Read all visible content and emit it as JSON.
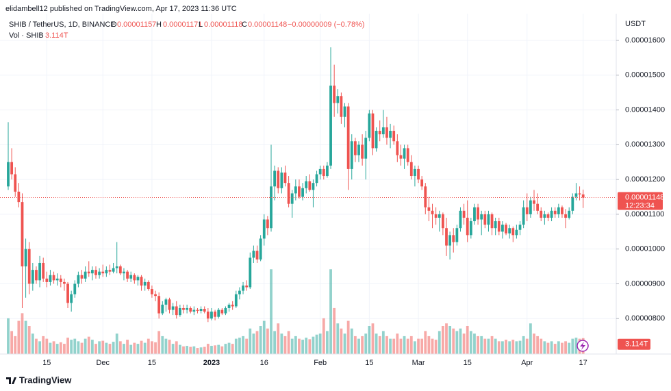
{
  "header": {
    "published": "elidambell12 published on TradingView.com, Apr 17, 2023 11:36 UTC"
  },
  "chart_data": {
    "type": "candlestick",
    "title": "SHIB / TetherUS, 1D, BINANCE",
    "ohlc_keys": [
      "O",
      "H",
      "L",
      "C"
    ],
    "change": "−0.00000009 (−0.78%)",
    "y_axis_label": "USDT",
    "countdown": "12:23:34",
    "grid": true,
    "up_color": "#26a69a",
    "down_color": "#ef5350",
    "ylim": [
      6.98e-06,
      1.667e-05
    ],
    "yticks": [
      {
        "value": 8e-06,
        "label": "0.00000800"
      },
      {
        "value": 9e-06,
        "label": "0.00000900"
      },
      {
        "value": 1e-05,
        "label": "0.00001000"
      },
      {
        "value": 1.1e-05,
        "label": "0.00001100"
      },
      {
        "value": 1.2e-05,
        "label": "0.00001200"
      },
      {
        "value": 1.3e-05,
        "label": "0.00001300"
      },
      {
        "value": 1.4e-05,
        "label": "0.00001400"
      },
      {
        "value": 1.5e-05,
        "label": "0.00001500"
      },
      {
        "value": 1.6e-05,
        "label": "0.00001600"
      }
    ],
    "categories": [
      null,
      null,
      null,
      null,
      null,
      null,
      null,
      null,
      null,
      null,
      null,
      "15",
      null,
      null,
      null,
      null,
      null,
      null,
      null,
      null,
      null,
      null,
      null,
      null,
      null,
      null,
      null,
      "Dec",
      null,
      null,
      null,
      null,
      null,
      null,
      null,
      null,
      null,
      null,
      null,
      null,
      null,
      "15",
      null,
      null,
      null,
      null,
      null,
      null,
      null,
      null,
      null,
      null,
      null,
      null,
      null,
      null,
      null,
      null,
      "2023",
      null,
      null,
      null,
      null,
      null,
      null,
      null,
      null,
      null,
      null,
      null,
      null,
      null,
      null,
      "16",
      null,
      null,
      null,
      null,
      null,
      null,
      null,
      null,
      null,
      null,
      null,
      null,
      null,
      null,
      null,
      "Feb",
      null,
      null,
      null,
      null,
      null,
      null,
      null,
      null,
      null,
      null,
      null,
      null,
      null,
      "15",
      null,
      null,
      null,
      null,
      null,
      null,
      null,
      null,
      null,
      null,
      null,
      null,
      null,
      "Mar",
      null,
      null,
      null,
      null,
      null,
      null,
      null,
      null,
      null,
      null,
      null,
      null,
      null,
      "15",
      null,
      null,
      null,
      null,
      null,
      null,
      null,
      null,
      null,
      null,
      null,
      null,
      null,
      null,
      null,
      null,
      "Apr",
      null,
      null,
      null,
      null,
      null,
      null,
      null,
      null,
      null,
      null,
      null,
      null,
      null,
      null,
      null,
      "17"
    ],
    "open": [
      1.18e-05,
      1.25e-05,
      1.215e-05,
      1.165e-05,
      1.135e-05,
      9.5e-06,
      1e-05,
      9e-06,
      9.4e-06,
      9.1e-06,
      9.6e-06,
      9.15e-06,
      9.05e-06,
      9.25e-06,
      9.1e-06,
      9.15e-06,
      9.05e-06,
      9e-06,
      8.45e-06,
      8.7e-06,
      9e-06,
      9.25e-06,
      9.15e-06,
      9.35e-06,
      9.3e-06,
      9.4e-06,
      9.25e-06,
      9.35e-06,
      9.3e-06,
      9.4e-06,
      9.35e-06,
      9.45e-06,
      9.5e-06,
      9.3e-06,
      9.35e-06,
      9.15e-06,
      9.25e-06,
      9.1e-06,
      9.2e-06,
      8.95e-06,
      9.05e-06,
      8.85e-06,
      8.7e-06,
      8.65e-06,
      8.15e-06,
      8.4e-06,
      8.55e-06,
      8.25e-06,
      8.35e-06,
      8.1e-06,
      8.3e-06,
      8.25e-06,
      8.3e-06,
      8.2e-06,
      8.25e-06,
      8.22e-06,
      8.28e-06,
      8.2e-06,
      8e-06,
      8.2e-06,
      8.05e-06,
      8.25e-06,
      8.15e-06,
      8.3e-06,
      8.4e-06,
      8.35e-06,
      8.7e-06,
      8.8e-06,
      8.95e-06,
      8.9e-06,
      9.75e-06,
      9.95e-06,
      9.7e-06,
      1.03e-05,
      1.085e-05,
      1.06e-05,
      1.18e-05,
      1.225e-05,
      1.175e-05,
      1.22e-05,
      1.19e-05,
      1.13e-05,
      1.16e-05,
      1.18e-05,
      1.15e-05,
      1.175e-05,
      1.195e-05,
      1.17e-05,
      1.19e-05,
      1.215e-05,
      1.23e-05,
      1.21e-05,
      1.24e-05,
      1.47e-05,
      1.42e-05,
      1.44e-05,
      1.38e-05,
      1.41e-05,
      1.23e-05,
      1.31e-05,
      1.27e-05,
      1.3e-05,
      1.26e-05,
      1.32e-05,
      1.39e-05,
      1.29e-05,
      1.34e-05,
      1.33e-05,
      1.35e-05,
      1.32e-05,
      1.34e-05,
      1.31e-05,
      1.27e-05,
      1.26e-05,
      1.29e-05,
      1.25e-05,
      1.21e-05,
      1.23e-05,
      1.2e-05,
      1.18e-05,
      1.12e-05,
      1.11e-05,
      1.1e-05,
      1.09e-05,
      1.1e-05,
      1.06e-05,
      1.01e-05,
      1.04e-05,
      1.02e-05,
      1.06e-05,
      1.11e-05,
      1.09e-05,
      1.04e-05,
      1.08e-05,
      1.12e-05,
      1.085e-05,
      1.1e-05,
      1.07e-05,
      1.1e-05,
      1.06e-05,
      1.08e-05,
      1.05e-05,
      1.07e-05,
      1.045e-05,
      1.06e-05,
      1.04e-05,
      1.055e-05,
      1.07e-05,
      1.12e-05,
      1.1e-05,
      1.14e-05,
      1.13e-05,
      1.11e-05,
      1.09e-05,
      1.1e-05,
      1.09e-05,
      1.11e-05,
      1.1e-05,
      1.12e-05,
      1.1e-05,
      1.09e-05,
      1.11e-05,
      1.15e-05,
      1.16e-05,
      1.157e-05
    ],
    "high": [
      1.365e-05,
      1.29e-05,
      1.235e-05,
      1.19e-05,
      1.16e-05,
      1.03e-05,
      1.02e-05,
      9.6e-06,
      9.5e-06,
      9.8e-06,
      9.75e-06,
      9.35e-06,
      9.4e-06,
      9.35e-06,
      9.3e-06,
      9.25e-06,
      9.15e-06,
      9.05e-06,
      8.8e-06,
      9.1e-06,
      9.35e-06,
      9.4e-06,
      9.5e-06,
      9.65e-06,
      9.5e-06,
      9.5e-06,
      9.45e-06,
      9.55e-06,
      9.5e-06,
      9.55e-06,
      9.6e-06,
      1.02e-05,
      9.55e-06,
      9.45e-06,
      9.4e-06,
      9.35e-06,
      9.3e-06,
      9.25e-06,
      9.25e-06,
      9.15e-06,
      9.1e-06,
      8.95e-06,
      8.8e-06,
      8.75e-06,
      8.5e-06,
      8.6e-06,
      8.6e-06,
      8.45e-06,
      8.5e-06,
      8.4e-06,
      8.4e-06,
      8.4e-06,
      8.35e-06,
      8.35e-06,
      8.3e-06,
      8.35e-06,
      8.35e-06,
      8.3e-06,
      8.3e-06,
      8.25e-06,
      8.3e-06,
      8.3e-06,
      8.35e-06,
      8.45e-06,
      8.5e-06,
      8.8e-06,
      8.9e-06,
      9.05e-06,
      9.1e-06,
      9.9e-06,
      1.01e-05,
      1.01e-05,
      1.04e-05,
      1.1e-05,
      1.095e-05,
      1.3e-05,
      1.24e-05,
      1.235e-05,
      1.235e-05,
      1.24e-05,
      1.21e-05,
      1.17e-05,
      1.2e-05,
      1.2e-05,
      1.19e-05,
      1.21e-05,
      1.215e-05,
      1.2e-05,
      1.225e-05,
      1.24e-05,
      1.24e-05,
      1.25e-05,
      1.58e-05,
      1.53e-05,
      1.46e-05,
      1.45e-05,
      1.42e-05,
      1.42e-05,
      1.33e-05,
      1.32e-05,
      1.31e-05,
      1.33e-05,
      1.34e-05,
      1.4e-05,
      1.4e-05,
      1.35e-05,
      1.37e-05,
      1.4e-05,
      1.38e-05,
      1.36e-05,
      1.355e-05,
      1.33e-05,
      1.3e-05,
      1.3e-05,
      1.3e-05,
      1.27e-05,
      1.24e-05,
      1.24e-05,
      1.21e-05,
      1.19e-05,
      1.15e-05,
      1.13e-05,
      1.12e-05,
      1.11e-05,
      1.105e-05,
      1.09e-05,
      1.05e-05,
      1.06e-05,
      1.07e-05,
      1.12e-05,
      1.13e-05,
      1.14e-05,
      1.09e-05,
      1.13e-05,
      1.13e-05,
      1.11e-05,
      1.11e-05,
      1.11e-05,
      1.105e-05,
      1.09e-05,
      1.09e-05,
      1.08e-05,
      1.075e-05,
      1.07e-05,
      1.065e-05,
      1.07e-05,
      1.08e-05,
      1.14e-05,
      1.16e-05,
      1.15e-05,
      1.17e-05,
      1.16e-05,
      1.12e-05,
      1.11e-05,
      1.105e-05,
      1.12e-05,
      1.12e-05,
      1.13e-05,
      1.125e-05,
      1.115e-05,
      1.12e-05,
      1.16e-05,
      1.19e-05,
      1.18e-05,
      1.171e-05
    ],
    "low": [
      1.17e-05,
      1.2e-05,
      1.15e-05,
      1.12e-05,
      8.3e-06,
      8.6e-06,
      8.7e-06,
      8.8e-06,
      9e-06,
      8.9e-06,
      9.05e-06,
      8.9e-06,
      8.95e-06,
      9e-06,
      8.95e-06,
      8.9e-06,
      8.8e-06,
      8.3e-06,
      8.2e-06,
      8.6e-06,
      8.9e-06,
      9e-06,
      9.05e-06,
      9.2e-06,
      9.1e-06,
      9.15e-06,
      9.15e-06,
      9.2e-06,
      9.2e-06,
      9.25e-06,
      9.3e-06,
      9.3e-06,
      9.25e-06,
      9.1e-06,
      9.05e-06,
      9.05e-06,
      9e-06,
      8.95e-06,
      8.8e-06,
      8.8e-06,
      8.8e-06,
      8.6e-06,
      8.5e-06,
      8e-06,
      8.1e-06,
      8.2e-06,
      8.15e-06,
      8.1e-06,
      8e-06,
      8.05e-06,
      8.15e-06,
      8.15e-06,
      8.15e-06,
      8.1e-06,
      8.15e-06,
      8.15e-06,
      8.15e-06,
      7.9e-06,
      7.95e-06,
      7.95e-06,
      8e-06,
      8.1e-06,
      8.1e-06,
      8.2e-06,
      8.25e-06,
      8.3e-06,
      8.55e-06,
      8.7e-06,
      8.8e-06,
      8.85e-06,
      9.6e-06,
      9.6e-06,
      9.65e-06,
      1.01e-05,
      1.04e-05,
      1.05e-05,
      1.14e-05,
      1.16e-05,
      1.16e-05,
      1.18e-05,
      1.12e-05,
      1.09e-05,
      1.14e-05,
      1.145e-05,
      1.14e-05,
      1.16e-05,
      1.165e-05,
      1.12e-05,
      1.18e-05,
      1.2e-05,
      1.2e-05,
      1.205e-05,
      1.23e-05,
      1.38e-05,
      1.39e-05,
      1.36e-05,
      1.35e-05,
      1.17e-05,
      1.2e-05,
      1.25e-05,
      1.25e-05,
      1.24e-05,
      1.2e-05,
      1.31e-05,
      1.27e-05,
      1.28e-05,
      1.31e-05,
      1.32e-05,
      1.3e-05,
      1.29e-05,
      1.3e-05,
      1.25e-05,
      1.24e-05,
      1.23e-05,
      1.24e-05,
      1.2e-05,
      1.18e-05,
      1.19e-05,
      1.17e-05,
      1.1e-05,
      1.08e-05,
      1.06e-05,
      1.07e-05,
      1.05e-05,
      1.04e-05,
      9.8e-06,
      9.7e-06,
      9.9e-06,
      1.01e-05,
      1.05e-05,
      1.07e-05,
      1.02e-05,
      1.03e-05,
      1.07e-05,
      1.07e-05,
      1.04e-05,
      1.06e-05,
      1.05e-05,
      1.04e-05,
      1.04e-05,
      1.04e-05,
      1.03e-05,
      1.04e-05,
      1.03e-05,
      1.02e-05,
      1.03e-05,
      1.04e-05,
      1.06e-05,
      1.08e-05,
      1.09e-05,
      1.11e-05,
      1.1e-05,
      1.08e-05,
      1.07e-05,
      1.08e-05,
      1.08e-05,
      1.09e-05,
      1.09e-05,
      1.09e-05,
      1.06e-05,
      1.085e-05,
      1.1e-05,
      1.14e-05,
      1.14e-05,
      1.118e-05
    ],
    "close": [
      1.25e-05,
      1.215e-05,
      1.165e-05,
      1.135e-05,
      9.5e-06,
      1e-05,
      9e-06,
      9.4e-06,
      9.1e-06,
      9.6e-06,
      9.15e-06,
      9.05e-06,
      9.25e-06,
      9.1e-06,
      9.15e-06,
      9.05e-06,
      9e-06,
      8.45e-06,
      8.7e-06,
      9e-06,
      9.25e-06,
      9.15e-06,
      9.35e-06,
      9.3e-06,
      9.4e-06,
      9.25e-06,
      9.35e-06,
      9.3e-06,
      9.4e-06,
      9.35e-06,
      9.45e-06,
      9.5e-06,
      9.3e-06,
      9.35e-06,
      9.15e-06,
      9.25e-06,
      9.1e-06,
      9.2e-06,
      8.95e-06,
      9.05e-06,
      8.85e-06,
      8.7e-06,
      8.65e-06,
      8.15e-06,
      8.4e-06,
      8.55e-06,
      8.25e-06,
      8.35e-06,
      8.1e-06,
      8.3e-06,
      8.25e-06,
      8.3e-06,
      8.2e-06,
      8.25e-06,
      8.22e-06,
      8.28e-06,
      8.2e-06,
      8e-06,
      8.2e-06,
      8.05e-06,
      8.25e-06,
      8.15e-06,
      8.3e-06,
      8.4e-06,
      8.35e-06,
      8.7e-06,
      8.8e-06,
      8.95e-06,
      8.9e-06,
      9.75e-06,
      9.95e-06,
      9.7e-06,
      1.03e-05,
      1.085e-05,
      1.06e-05,
      1.18e-05,
      1.225e-05,
      1.175e-05,
      1.22e-05,
      1.19e-05,
      1.13e-05,
      1.16e-05,
      1.18e-05,
      1.15e-05,
      1.175e-05,
      1.195e-05,
      1.17e-05,
      1.19e-05,
      1.215e-05,
      1.23e-05,
      1.21e-05,
      1.24e-05,
      1.47e-05,
      1.42e-05,
      1.44e-05,
      1.38e-05,
      1.41e-05,
      1.23e-05,
      1.31e-05,
      1.27e-05,
      1.3e-05,
      1.26e-05,
      1.32e-05,
      1.39e-05,
      1.29e-05,
      1.34e-05,
      1.33e-05,
      1.35e-05,
      1.32e-05,
      1.34e-05,
      1.31e-05,
      1.27e-05,
      1.26e-05,
      1.29e-05,
      1.25e-05,
      1.21e-05,
      1.23e-05,
      1.2e-05,
      1.18e-05,
      1.12e-05,
      1.11e-05,
      1.1e-05,
      1.09e-05,
      1.1e-05,
      1.06e-05,
      1.01e-05,
      1.04e-05,
      1.02e-05,
      1.06e-05,
      1.11e-05,
      1.09e-05,
      1.04e-05,
      1.08e-05,
      1.12e-05,
      1.085e-05,
      1.1e-05,
      1.07e-05,
      1.1e-05,
      1.06e-05,
      1.08e-05,
      1.05e-05,
      1.07e-05,
      1.045e-05,
      1.06e-05,
      1.04e-05,
      1.055e-05,
      1.07e-05,
      1.12e-05,
      1.1e-05,
      1.14e-05,
      1.13e-05,
      1.11e-05,
      1.09e-05,
      1.1e-05,
      1.09e-05,
      1.11e-05,
      1.1e-05,
      1.12e-05,
      1.1e-05,
      1.09e-05,
      1.11e-05,
      1.15e-05,
      1.16e-05,
      1.157e-05,
      1.148e-05
    ],
    "volume": {
      "name": "Vol · SHIB",
      "last_label": "3.114T",
      "ylim": [
        0,
        66
      ],
      "values": [
        7.0,
        4.5,
        3.5,
        6.5,
        8.0,
        6.5,
        5.5,
        4.0,
        3.0,
        2.5,
        3.5,
        3.0,
        2.2,
        2.5,
        2.0,
        2.3,
        2.0,
        3.2,
        2.8,
        3.0,
        2.5,
        2.2,
        3.0,
        3.4,
        2.8,
        2.0,
        2.5,
        2.6,
        2.2,
        2.0,
        2.4,
        4.0,
        2.5,
        2.0,
        2.8,
        1.8,
        2.2,
        2.0,
        2.6,
        2.2,
        3.0,
        2.5,
        2.3,
        4.5,
        3.5,
        3.0,
        2.8,
        2.0,
        2.5,
        1.8,
        1.5,
        1.6,
        1.4,
        1.5,
        1.2,
        1.3,
        1.4,
        2.0,
        1.6,
        1.7,
        1.8,
        1.5,
        2.0,
        2.2,
        2.0,
        3.0,
        3.2,
        3.5,
        3.0,
        5.0,
        4.0,
        4.5,
        5.5,
        6.5,
        5.0,
        16.6,
        4.5,
        6.0,
        4.0,
        3.5,
        4.5,
        3.0,
        3.5,
        3.0,
        2.8,
        3.2,
        2.9,
        3.4,
        3.8,
        4.0,
        7.0,
        4.5,
        16.6,
        9.0,
        6.0,
        5.0,
        4.0,
        6.5,
        5.0,
        3.5,
        3.0,
        3.5,
        4.0,
        5.5,
        6.0,
        4.0,
        3.5,
        4.5,
        3.5,
        3.0,
        3.0,
        4.0,
        3.0,
        3.5,
        3.0,
        3.5,
        2.5,
        3.0,
        3.0,
        4.5,
        3.5,
        3.0,
        2.8,
        4.5,
        5.5,
        6.0,
        5.5,
        5.0,
        4.5,
        5.0,
        4.0,
        5.5,
        4.5,
        4.0,
        3.5,
        3.5,
        3.0,
        3.0,
        3.5,
        3.0,
        2.5,
        2.5,
        2.8,
        2.5,
        2.8,
        2.5,
        2.6,
        3.5,
        3.0,
        6.0,
        4.0,
        3.5,
        3.0,
        2.5,
        2.2,
        2.5,
        2.0,
        2.5,
        2.2,
        2.5,
        2.2,
        3.0,
        3.2,
        3.0,
        3.114
      ]
    }
  },
  "footer": {
    "logo": "TradingView"
  }
}
